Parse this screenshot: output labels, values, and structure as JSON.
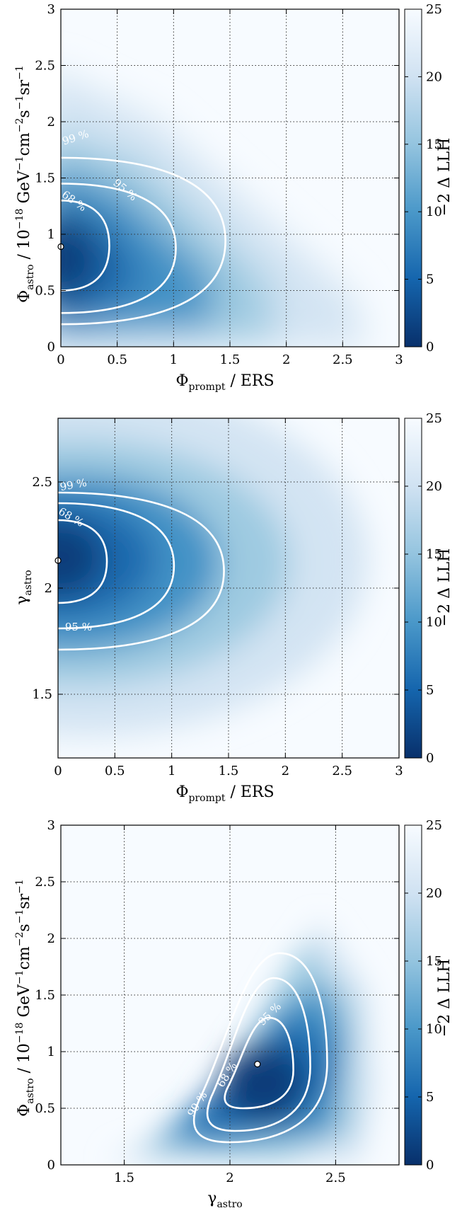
{
  "chart_data": [
    {
      "type": "heatmap",
      "xlabel": "Φprompt / ERS",
      "ylabel": "Φastro / 10−18 GeV−1cm−2s−1sr−1",
      "xlim": [
        0,
        3
      ],
      "ylim": [
        0,
        3
      ],
      "xticks": [
        "0",
        "0.5",
        "1",
        "1.5",
        "2",
        "2.5",
        "3"
      ],
      "yticks": [
        "0",
        "0.5",
        "1",
        "1.5",
        "2",
        "2.5",
        "3"
      ],
      "grid": true,
      "colorbar": {
        "label": "−2 Δ LLH",
        "range": [
          0,
          25
        ],
        "ticks": [
          "0",
          "5",
          "10",
          "15",
          "20",
          "25"
        ]
      },
      "best_fit": {
        "x": 0.0,
        "y": 0.89
      },
      "contours": [
        {
          "label": "68 %",
          "x_max": 0.43,
          "y_range": [
            0.5,
            1.3
          ]
        },
        {
          "label": "95 %",
          "x_max": 1.02,
          "y_range": [
            0.3,
            1.45
          ]
        },
        {
          "label": "99 %",
          "x_max": 1.46,
          "y_range": [
            0.2,
            1.68
          ]
        }
      ]
    },
    {
      "type": "heatmap",
      "xlabel": "Φprompt / ERS",
      "ylabel": "γastro",
      "xlim": [
        0,
        3
      ],
      "ylim": [
        1.2,
        2.8
      ],
      "xticks": [
        "0",
        "0.5",
        "1",
        "1.5",
        "2",
        "2.5",
        "3"
      ],
      "yticks": [
        "1.5",
        "2",
        "2.5"
      ],
      "grid": true,
      "colorbar": {
        "label": "−2 Δ LLH",
        "range": [
          0,
          25
        ],
        "ticks": [
          "0",
          "5",
          "10",
          "15",
          "20",
          "25"
        ]
      },
      "best_fit": {
        "x": 0.0,
        "y": 2.13
      },
      "contours": [
        {
          "label": "68 %",
          "x_max": 0.43,
          "y_range": [
            1.93,
            2.32
          ]
        },
        {
          "label": "95 %",
          "x_max": 1.02,
          "y_range": [
            1.81,
            2.4
          ]
        },
        {
          "label": "99 %",
          "x_max": 1.46,
          "y_range": [
            1.71,
            2.45
          ]
        }
      ]
    },
    {
      "type": "heatmap",
      "xlabel": "γastro",
      "ylabel": "Φastro / 10−18 GeV−1cm−2s−1sr−1",
      "xlim": [
        1.2,
        2.8
      ],
      "ylim": [
        0,
        3
      ],
      "xticks": [
        "1.5",
        "2",
        "2.5"
      ],
      "yticks": [
        "0",
        "0.5",
        "1",
        "1.5",
        "2",
        "2.5",
        "3"
      ],
      "grid": true,
      "colorbar": {
        "label": "−2 Δ LLH",
        "range": [
          0,
          25
        ],
        "ticks": [
          "0",
          "5",
          "10",
          "15",
          "20",
          "25"
        ]
      },
      "best_fit": {
        "x": 2.13,
        "y": 0.89
      },
      "contours": [
        {
          "label": "68 %",
          "x_range": [
            1.96,
            2.3
          ],
          "y_range": [
            0.5,
            1.3
          ]
        },
        {
          "label": "95 %",
          "x_range": [
            1.87,
            2.38
          ],
          "y_range": [
            0.3,
            1.65
          ]
        },
        {
          "label": "99 %",
          "x_range": [
            1.8,
            2.46
          ],
          "y_range": [
            0.2,
            1.87
          ]
        }
      ]
    }
  ],
  "labels": {
    "prompt_x_main": "Φ",
    "prompt_x_sub": "prompt",
    "prompt_x_tail": " / ERS",
    "flux_y_main": "Φ",
    "flux_y_sub": "astro",
    "flux_y_tail": " / 10",
    "flux_y_exp1": "−18",
    "flux_y_unit1": " GeV",
    "flux_y_exp2": "−1",
    "flux_y_unit2": "cm",
    "flux_y_exp3": "−2",
    "flux_y_unit3": "s",
    "flux_y_exp4": "−1",
    "flux_y_unit4": "sr",
    "flux_y_exp5": "−1",
    "gamma_main": "γ",
    "gamma_sub": "astro",
    "cbar_label": "−2 Δ LLH",
    "cl68": "68 %",
    "cl95": "95 %",
    "cl99": "99 %"
  }
}
